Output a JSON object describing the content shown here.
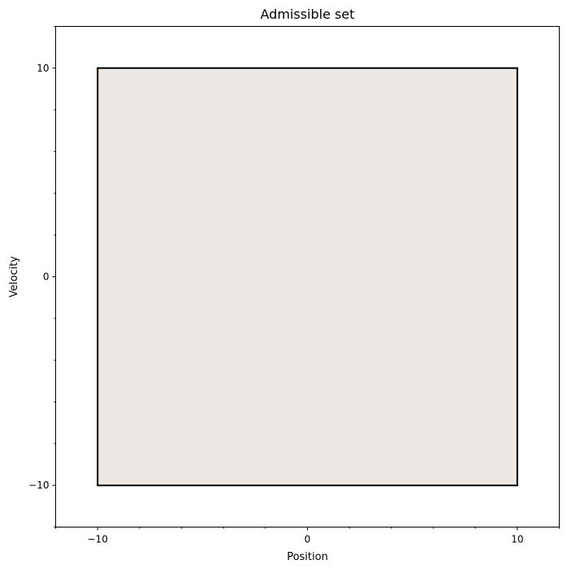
{
  "chart_data": {
    "type": "area",
    "title": "Admissible set",
    "xlabel": "Position",
    "ylabel": "Velocity",
    "xlim": [
      -12,
      12
    ],
    "ylim": [
      -12,
      12
    ],
    "x_major_ticks": [
      -10,
      0,
      10
    ],
    "y_major_ticks": [
      -10,
      0,
      10
    ],
    "x_tick_labels": [
      "−10",
      "0",
      "10"
    ],
    "y_tick_labels": [
      "−10",
      "0",
      "10"
    ],
    "minor_tick_step": 2,
    "grid": false,
    "legend": "none",
    "regions": [
      {
        "shape": "polygon",
        "vertices": [
          [
            -10,
            -10
          ],
          [
            10,
            -10
          ],
          [
            10,
            10
          ],
          [
            -10,
            10
          ]
        ],
        "fill_color": "#EEE8E4",
        "edge_color": "#000000"
      }
    ]
  }
}
